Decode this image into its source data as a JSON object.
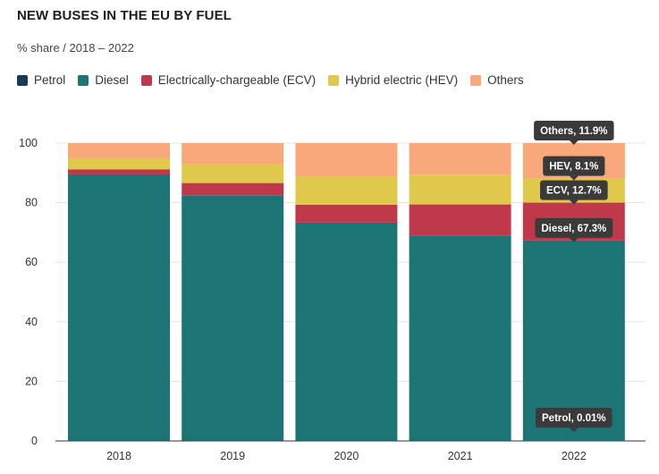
{
  "title": "NEW BUSES IN THE EU BY FUEL",
  "subtitle": "% share / 2018 – 2022",
  "chart_data": {
    "type": "bar",
    "stacked": true,
    "title": "NEW BUSES IN THE EU BY FUEL",
    "subtitle": "% share / 2018 – 2022",
    "categories": [
      "2018",
      "2019",
      "2020",
      "2021",
      "2022"
    ],
    "ylim": [
      0,
      100
    ],
    "yticks": [
      0,
      20,
      40,
      60,
      80,
      100
    ],
    "grid": true,
    "legend_position": "top",
    "series": [
      {
        "name": "Petrol",
        "color": "#1b3a57",
        "values": [
          0.1,
          0.1,
          0.1,
          0.1,
          0.01
        ]
      },
      {
        "name": "Diesel",
        "color": "#1c7574",
        "values": [
          89.4,
          82.4,
          73.2,
          68.9,
          67.3
        ]
      },
      {
        "name": "Electrically-chargeable (ECV)",
        "color": "#c0394a",
        "values": [
          1.7,
          4.1,
          6.0,
          10.4,
          12.7
        ]
      },
      {
        "name": "Hybrid electric (HEV)",
        "color": "#e0c84c",
        "values": [
          3.7,
          6.3,
          9.6,
          10.0,
          8.1
        ]
      },
      {
        "name": "Others",
        "color": "#f9a87c",
        "values": [
          5.1,
          7.1,
          11.1,
          10.6,
          11.9
        ]
      }
    ],
    "annotations": [
      {
        "category": "2022",
        "series": "Others",
        "label": "Others, 11.9%"
      },
      {
        "category": "2022",
        "series": "Hybrid electric (HEV)",
        "label": "HEV, 8.1%"
      },
      {
        "category": "2022",
        "series": "Electrically-chargeable (ECV)",
        "label": "ECV, 12.7%"
      },
      {
        "category": "2022",
        "series": "Diesel",
        "label": "Diesel, 67.3%"
      },
      {
        "category": "2022",
        "series": "Petrol",
        "label": "Petrol, 0.01%"
      }
    ]
  }
}
